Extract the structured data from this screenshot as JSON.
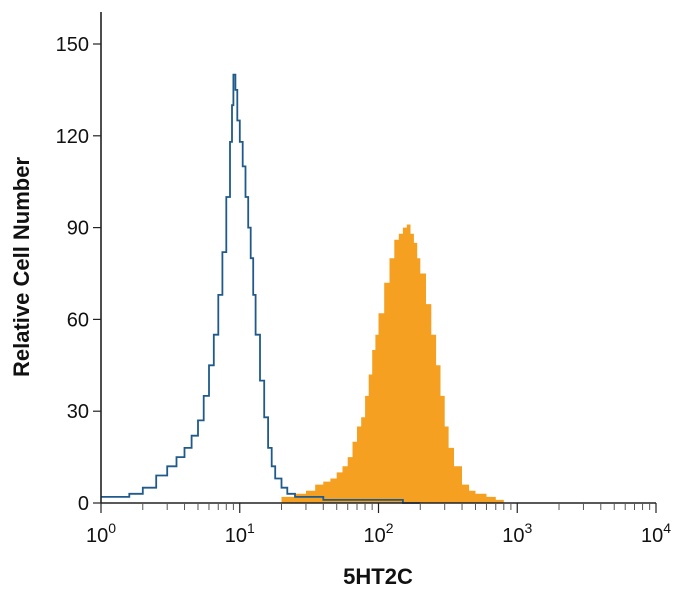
{
  "chart_data": {
    "type": "area",
    "xlabel": "5HT2C",
    "ylabel": "Relative Cell Number",
    "xscale": "log",
    "xlim": [
      1,
      10000
    ],
    "ylim": [
      0,
      150
    ],
    "yticks": [
      {
        "value": 0,
        "label": "0"
      },
      {
        "value": 30,
        "label": "30"
      },
      {
        "value": 60,
        "label": "60"
      },
      {
        "value": 90,
        "label": "90"
      },
      {
        "value": 120,
        "label": "120"
      },
      {
        "value": 150,
        "label": "150"
      }
    ],
    "xticks": [
      {
        "value": 1,
        "base": "10",
        "exp": "0"
      },
      {
        "value": 10,
        "base": "10",
        "exp": "1"
      },
      {
        "value": 100,
        "base": "10",
        "exp": "2"
      },
      {
        "value": 1000,
        "base": "10",
        "exp": "3"
      },
      {
        "value": 10000,
        "base": "10",
        "exp": "4"
      }
    ],
    "grid": false,
    "legend": "none",
    "series": [
      {
        "style": "outline",
        "color": "#1f5a8a",
        "x": [
          1.0,
          1.3,
          1.6,
          2.0,
          2.5,
          3.0,
          3.5,
          4.0,
          4.5,
          5.0,
          5.5,
          6.0,
          6.5,
          7.0,
          7.5,
          8.0,
          8.5,
          8.8,
          9.0,
          9.3,
          9.6,
          10.0,
          10.5,
          11.0,
          11.5,
          12.0,
          12.5,
          13.0,
          14.0,
          15.0,
          16.0,
          17.0,
          18.0,
          20.0,
          22.0,
          25.0,
          30.0,
          40.0,
          60.0,
          80.0,
          100.0,
          120.0,
          150.0,
          200.0
        ],
        "y": [
          2,
          2,
          3,
          5,
          9,
          12,
          15,
          18,
          22,
          27,
          35,
          45,
          55,
          68,
          82,
          100,
          118,
          130,
          140,
          135,
          125,
          118,
          110,
          100,
          90,
          80,
          68,
          55,
          40,
          28,
          18,
          12,
          8,
          5,
          3,
          2,
          2,
          1,
          1,
          1,
          1,
          1,
          0,
          0
        ]
      },
      {
        "style": "filled",
        "color": "#f5a020",
        "x": [
          15.0,
          20.0,
          25.0,
          30.0,
          35.0,
          40.0,
          45.0,
          50.0,
          55.0,
          60.0,
          65.0,
          70.0,
          75.0,
          80.0,
          85.0,
          90.0,
          95.0,
          100.0,
          110.0,
          120.0,
          130.0,
          140.0,
          150.0,
          160.0,
          170.0,
          180.0,
          190.0,
          200.0,
          220.0,
          240.0,
          260.0,
          280.0,
          300.0,
          320.0,
          350.0,
          400.0,
          450.0,
          500.0,
          600.0,
          700.0,
          800.0
        ],
        "y": [
          0,
          2,
          3,
          4,
          6,
          7,
          8,
          10,
          12,
          15,
          20,
          25,
          28,
          35,
          42,
          50,
          55,
          62,
          72,
          80,
          86,
          88,
          90,
          91,
          88,
          85,
          80,
          75,
          65,
          55,
          45,
          35,
          25,
          18,
          12,
          6,
          4,
          3,
          2,
          1,
          0
        ]
      }
    ]
  }
}
